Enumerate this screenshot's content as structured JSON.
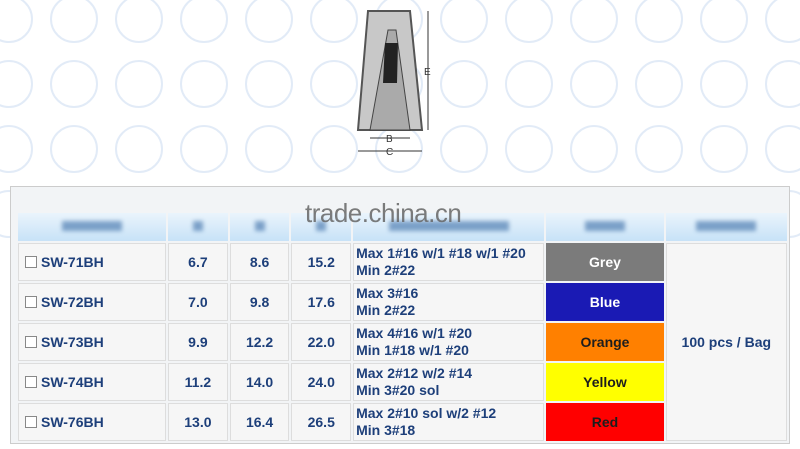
{
  "watermark": "trade.china.cn",
  "diagram": {
    "labels": {
      "b": "B",
      "c": "C",
      "e": "E"
    }
  },
  "rows": [
    {
      "item": "SW-71BH",
      "b": "6.7",
      "c": "8.6",
      "e": "15.2",
      "wire1": "Max 1#16 w/1 #18 w/1 #20",
      "wire2": "Min 2#22",
      "color": "Grey",
      "hex": "#7b7b7b",
      "text": "#ffffff"
    },
    {
      "item": "SW-72BH",
      "b": "7.0",
      "c": "9.8",
      "e": "17.6",
      "wire1": "Max 3#16",
      "wire2": "Min 2#22",
      "color": "Blue",
      "hex": "#1a1ab4",
      "text": "#ffffff"
    },
    {
      "item": "SW-73BH",
      "b": "9.9",
      "c": "12.2",
      "e": "22.0",
      "wire1": "Max 4#16 w/1 #20",
      "wire2": "Min 1#18 w/1 #20",
      "color": "Orange",
      "hex": "#ff8000",
      "text": "#1d1d1d"
    },
    {
      "item": "SW-74BH",
      "b": "11.2",
      "c": "14.0",
      "e": "24.0",
      "wire1": "Max 2#12 w/2 #14",
      "wire2": "Min 3#20 sol",
      "color": "Yellow",
      "hex": "#ffff00",
      "text": "#1d1d1d"
    },
    {
      "item": "SW-76BH",
      "b": "13.0",
      "c": "16.4",
      "e": "26.5",
      "wire1": "Max 2#10 sol w/2 #12",
      "wire2": "Min 3#18",
      "color": "Red",
      "hex": "#ff0000",
      "text": "#1d1d1d"
    }
  ],
  "packing": "100 pcs / Bag"
}
